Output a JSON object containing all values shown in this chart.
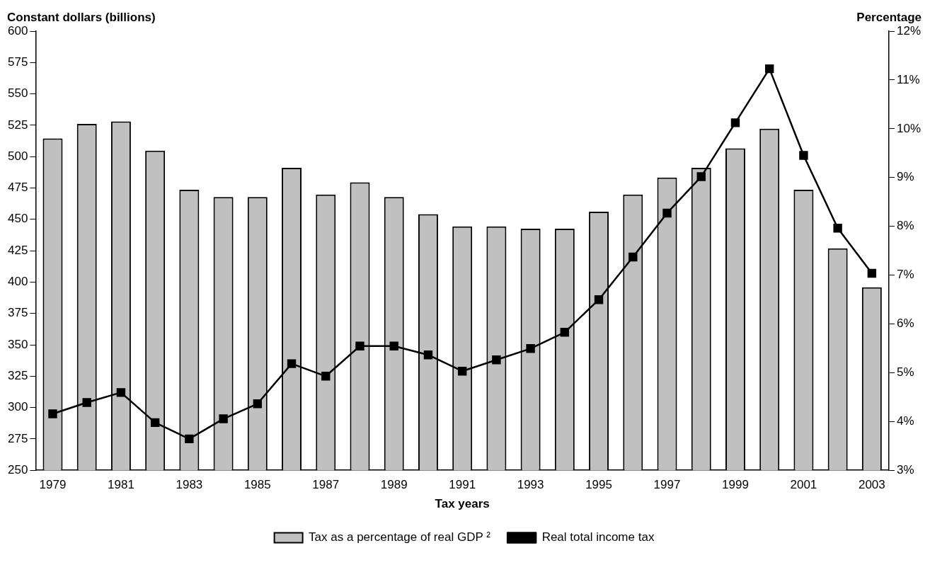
{
  "chart_data": {
    "type": "bar",
    "xlabel": "Tax years",
    "ylabel": "Constant dollars (billions)",
    "y2label": "Percentage",
    "categories": [
      "1979",
      null,
      "1981",
      null,
      "1983",
      null,
      "1985",
      null,
      "1987",
      null,
      "1989",
      null,
      "1991",
      null,
      "1993",
      null,
      "1995",
      null,
      "1997",
      null,
      "1999",
      null,
      "2001",
      null,
      "2003"
    ],
    "series": [
      {
        "name": "Tax as a percentage of real GDP ²",
        "axis": "y2",
        "color": "#c0c0c0",
        "values": [
          9.8,
          10.1,
          10.15,
          9.55,
          8.75,
          8.6,
          8.6,
          9.2,
          8.65,
          8.9,
          8.6,
          8.25,
          8.0,
          8.0,
          7.95,
          7.95,
          8.3,
          8.65,
          9.0,
          9.2,
          9.6,
          10.0,
          8.75,
          7.55,
          6.75
        ]
      },
      {
        "name": "Real total income tax",
        "type": "line",
        "axis": "y",
        "color": "#000000",
        "marker": "square",
        "line_style": "solid",
        "values": [
          295,
          304,
          312,
          288,
          275,
          291,
          303,
          335,
          325,
          349,
          349,
          342,
          329,
          338,
          347,
          360,
          386,
          420,
          455,
          484,
          527,
          570,
          501,
          443,
          407
        ]
      }
    ],
    "ylim": [
      250,
      600
    ],
    "yticks": [
      250,
      275,
      300,
      325,
      350,
      375,
      400,
      425,
      450,
      475,
      500,
      525,
      550,
      575,
      600
    ],
    "y2lim": [
      3,
      12
    ],
    "y2ticks": [
      {
        "value": 3,
        "label": "3%"
      },
      {
        "value": 4,
        "label": "4%"
      },
      {
        "value": 5,
        "label": "5%"
      },
      {
        "value": 6,
        "label": "6%"
      },
      {
        "value": 7,
        "label": "7%"
      },
      {
        "value": 8,
        "label": "8%"
      },
      {
        "value": 9,
        "label": "9%"
      },
      {
        "value": 10,
        "label": "10%"
      },
      {
        "value": 11,
        "label": "11%"
      },
      {
        "value": 12,
        "label": "12%"
      }
    ],
    "legend": "bottom"
  }
}
